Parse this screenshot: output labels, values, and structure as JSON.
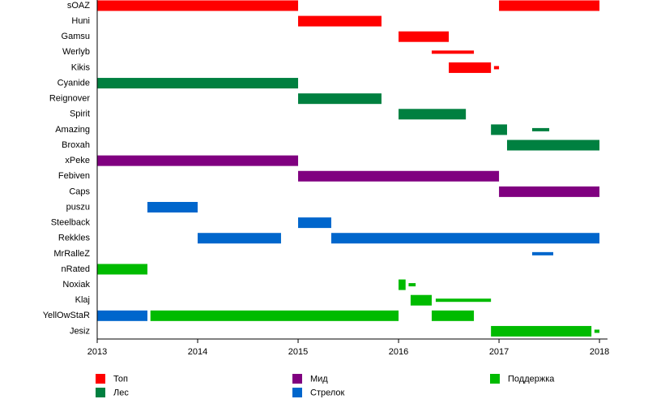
{
  "chart_data": {
    "type": "timeline",
    "categories": [
      "sOAZ",
      "Huni",
      "Gamsu",
      "Werlyb",
      "Kikis",
      "Cyanide",
      "Reignover",
      "Spirit",
      "Amazing",
      "Broxah",
      "xPeke",
      "Febiven",
      "Caps",
      "puszu",
      "Steelback",
      "Rekkles",
      "MrRalleZ",
      "nRated",
      "Noxiak",
      "Klaj",
      "YellOwStaR",
      "Jesiz"
    ],
    "xlim": [
      2013,
      2018.08
    ],
    "xticks": [
      2013,
      2014,
      2015,
      2016,
      2017,
      2018
    ],
    "series": [
      {
        "name": "Топ",
        "color": "#ff0000",
        "values": [
          [
            {
              "start": 2013,
              "end": 2015
            },
            {
              "start": 2017,
              "end": 2018
            }
          ],
          [
            {
              "start": 2015,
              "end": 2015.83
            }
          ],
          [
            {
              "start": 2016,
              "end": 2016.5
            }
          ],
          [
            {
              "start": 2016.33,
              "end": 2016.75,
              "thin": true
            }
          ],
          [
            {
              "start": 2016.5,
              "end": 2016.92
            },
            {
              "start": 2016.95,
              "end": 2017,
              "thin": true
            }
          ],
          [],
          [],
          [],
          [],
          [],
          [],
          [],
          [],
          [],
          [],
          [],
          [],
          [],
          [],
          [],
          [],
          []
        ]
      },
      {
        "name": "Лес",
        "color": "#008040",
        "values": [
          [],
          [],
          [],
          [],
          [],
          [
            {
              "start": 2013,
              "end": 2015
            }
          ],
          [
            {
              "start": 2015,
              "end": 2015.83
            }
          ],
          [
            {
              "start": 2016,
              "end": 2016.67
            }
          ],
          [
            {
              "start": 2016.92,
              "end": 2017.08
            },
            {
              "start": 2017.33,
              "end": 2017.5,
              "thin": true
            }
          ],
          [
            {
              "start": 2017.08,
              "end": 2018
            }
          ],
          [],
          [],
          [],
          [],
          [],
          [],
          [],
          [],
          [],
          [],
          [],
          []
        ]
      },
      {
        "name": "Мид",
        "color": "#800080",
        "values": [
          [],
          [],
          [],
          [],
          [],
          [],
          [],
          [],
          [],
          [],
          [
            {
              "start": 2013,
              "end": 2015
            }
          ],
          [
            {
              "start": 2015,
              "end": 2017
            }
          ],
          [
            {
              "start": 2017,
              "end": 2018
            }
          ],
          [],
          [],
          [],
          [],
          [],
          [],
          [],
          [],
          []
        ]
      },
      {
        "name": "Стрелок",
        "color": "#0066cc",
        "values": [
          [],
          [],
          [],
          [],
          [],
          [],
          [],
          [],
          [],
          [],
          [],
          [],
          [],
          [
            {
              "start": 2013.5,
              "end": 2014
            }
          ],
          [
            {
              "start": 2015,
              "end": 2015.33
            }
          ],
          [
            {
              "start": 2014,
              "end": 2014.83
            },
            {
              "start": 2015.33,
              "end": 2018
            }
          ],
          [
            {
              "start": 2017.33,
              "end": 2017.54,
              "thin": true
            }
          ],
          [],
          [],
          [],
          [
            {
              "start": 2013,
              "end": 2013.5
            }
          ],
          []
        ]
      },
      {
        "name": "Поддержка",
        "color": "#00bb00",
        "values": [
          [],
          [],
          [],
          [],
          [],
          [],
          [],
          [],
          [],
          [],
          [],
          [],
          [],
          [],
          [],
          [],
          [],
          [
            {
              "start": 2013,
              "end": 2013.5
            }
          ],
          [
            {
              "start": 2016,
              "end": 2016.07
            },
            {
              "start": 2016.1,
              "end": 2016.17,
              "thin": true
            }
          ],
          [
            {
              "start": 2016.12,
              "end": 2016.33
            },
            {
              "start": 2016.37,
              "end": 2016.92,
              "thin": true
            }
          ],
          [
            {
              "start": 2013.53,
              "end": 2016
            },
            {
              "start": 2016.33,
              "end": 2016.75
            }
          ],
          [
            {
              "start": 2016.92,
              "end": 2017.92
            },
            {
              "start": 2017.95,
              "end": 2018,
              "thin": true
            }
          ]
        ]
      }
    ]
  }
}
